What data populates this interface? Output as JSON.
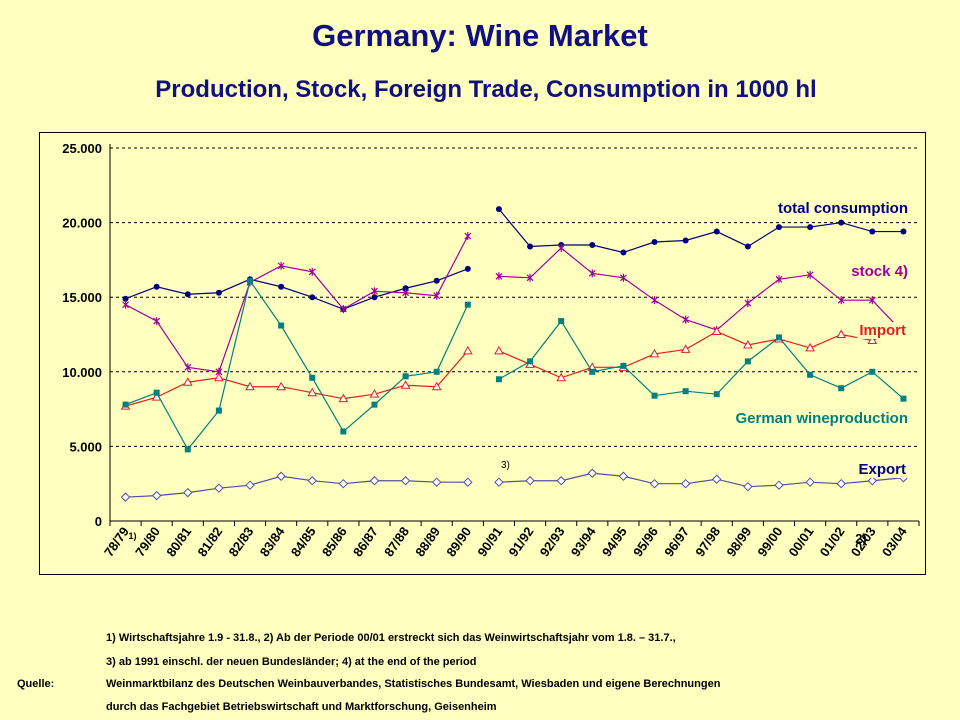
{
  "title": "Germany: Wine Market",
  "subtitle": "Production, Stock, Foreign Trade, Consumption in 1000 hl",
  "chart_data": {
    "type": "line",
    "categories": [
      "78/79",
      "79/80",
      "80/81",
      "81/82",
      "82/83",
      "83/84",
      "84/85",
      "85/86",
      "86/87",
      "87/88",
      "88/89",
      "89/90",
      "90/91",
      "91/92",
      "92/93",
      "93/94",
      "94/95",
      "95/96",
      "96/97",
      "97/98",
      "98/99",
      "99/00",
      "00/01",
      "01/02",
      "02/03",
      "03/04"
    ],
    "yticks": [
      "0",
      "5.000",
      "10.000",
      "15.000",
      "20.000",
      "25.000"
    ],
    "ylim": [
      0,
      25000
    ],
    "gap_after_index": 11,
    "series": [
      {
        "name": "total consumption",
        "color": "#000080",
        "marker": "circle",
        "values": [
          14900,
          15700,
          15200,
          15300,
          16200,
          15700,
          15000,
          14200,
          15000,
          15600,
          16100,
          16900,
          20900,
          18400,
          18500,
          18500,
          18000,
          18700,
          18800,
          19400,
          18400,
          19700,
          19700,
          20000,
          19400,
          19400
        ]
      },
      {
        "name": "stock 4)",
        "color": "#a000a0",
        "marker": "star",
        "values": [
          14500,
          13400,
          10300,
          10000,
          16000,
          17100,
          16700,
          14200,
          15400,
          15300,
          15100,
          19100,
          16400,
          16300,
          18300,
          16600,
          16300,
          14800,
          13500,
          12800,
          14600,
          16200,
          16500,
          14800,
          14800,
          12600
        ]
      },
      {
        "name": "Import",
        "color": "#e02020",
        "marker": "triangle",
        "values": [
          7700,
          8300,
          9300,
          9600,
          9000,
          9000,
          8600,
          8200,
          8500,
          9100,
          9000,
          11400,
          11400,
          10500,
          9600,
          10300,
          10300,
          11200,
          11500,
          12700,
          11800,
          12200,
          11600,
          12500,
          12100,
          13000
        ]
      },
      {
        "name": "German wineproduction",
        "color": "#008080",
        "marker": "square",
        "values": [
          7800,
          8600,
          4800,
          7400,
          16100,
          13100,
          9600,
          6000,
          7800,
          9700,
          10000,
          14500,
          9500,
          10700,
          13400,
          10000,
          10400,
          8400,
          8700,
          8500,
          10700,
          12300,
          9800,
          8900,
          10000,
          8200
        ]
      },
      {
        "name": "Export",
        "color": "#5050a0",
        "marker": "diamond",
        "values": [
          1600,
          1700,
          1900,
          2200,
          2400,
          3000,
          2700,
          2500,
          2700,
          2700,
          2600,
          2600,
          2600,
          2700,
          2700,
          3200,
          3000,
          2500,
          2500,
          2800,
          2300,
          2400,
          2600,
          2500,
          2700,
          2900
        ]
      }
    ],
    "labels": {
      "total consumption": "total consumption",
      "stock": "stock 4)",
      "import": "Import",
      "production": "German wineproduction",
      "export": "Export"
    },
    "annotations": {
      "note1": "1)",
      "note2": "2)",
      "note3": "3)"
    }
  },
  "footnotes": {
    "line1": "1) Wirtschaftsjahre  1.9 - 31.8.,   2) Ab der Periode 00/01 erstreckt sich das Weinwirtschaftsjahr  vom 1.8. – 31.7.,",
    "line2": "3) ab 1991 einschl. der neuen Bundesländer;  4) at the end of the period",
    "source_label": "Quelle:",
    "source_line1": "Weinmarktbilanz des Deutschen Weinbauverbandes,  Statistisches Bundesamt, Wiesbaden und eigene Berechnungen",
    "source_line2": "durch das Fachgebiet Betriebswirtschaft  und Marktforschung,  Geisenheim"
  }
}
